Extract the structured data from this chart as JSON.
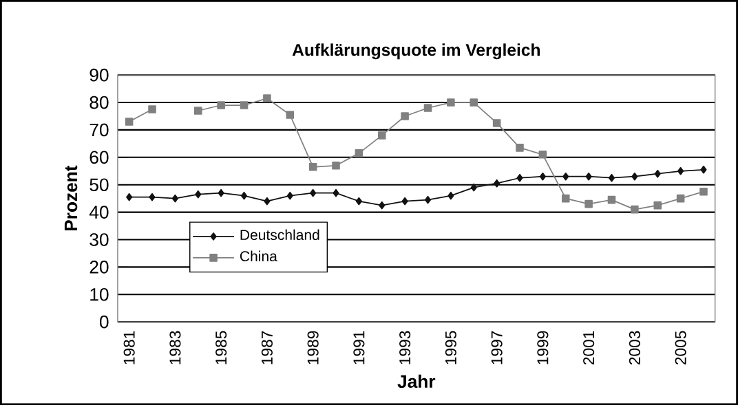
{
  "chart_data": {
    "type": "line",
    "title": "Aufklärungsquote im Vergleich",
    "xlabel": "Jahr",
    "ylabel": "Prozent",
    "categories": [
      "1981",
      null,
      "1983",
      null,
      "1985",
      null,
      "1987",
      null,
      "1989",
      null,
      "1991",
      null,
      "1993",
      null,
      "1995",
      null,
      "1997",
      null,
      "1999",
      null,
      "2001",
      null,
      "2003",
      null,
      "2005",
      null
    ],
    "series": [
      {
        "name": "Deutschland",
        "color": "#111111",
        "marker": "diamond",
        "values": [
          45.5,
          45.5,
          45,
          46.5,
          47,
          46,
          44,
          46,
          47,
          47,
          44,
          42.5,
          44,
          44.5,
          46,
          49,
          50.5,
          52.5,
          53,
          53,
          53,
          52.5,
          53,
          54,
          55,
          55.5
        ]
      },
      {
        "name": "China",
        "color": "#808080",
        "marker": "square",
        "values": [
          73,
          77.5,
          null,
          77,
          79,
          79,
          81.5,
          75.5,
          56.5,
          57,
          61.5,
          68,
          75,
          78,
          80,
          80,
          72.5,
          63.5,
          61,
          45,
          43,
          44.5,
          41,
          42.5,
          45,
          47.5
        ]
      }
    ],
    "ylim": [
      0,
      90
    ],
    "yticks": [
      0,
      10,
      20,
      30,
      40,
      50,
      60,
      70,
      80,
      90
    ],
    "grid": "y",
    "legend": "bottom left",
    "line_style": "solid"
  }
}
